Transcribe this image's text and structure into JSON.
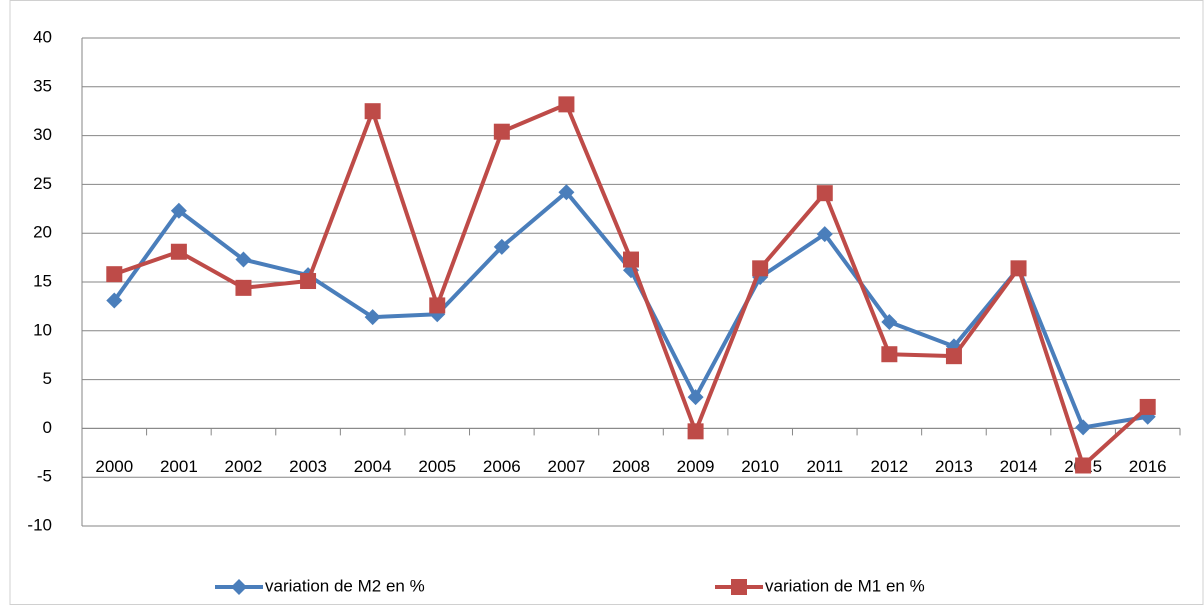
{
  "chart_data": {
    "type": "line",
    "categories": [
      "2000",
      "2001",
      "2002",
      "2003",
      "2004",
      "2005",
      "2006",
      "2007",
      "2008",
      "2009",
      "2010",
      "2011",
      "2012",
      "2013",
      "2014",
      "2015",
      "2016"
    ],
    "series": [
      {
        "name": "variation de M2 en %",
        "color": "#4a7ebb",
        "marker": "diamond",
        "values": [
          13.1,
          22.3,
          17.3,
          15.7,
          11.4,
          11.7,
          18.6,
          24.2,
          16.2,
          3.2,
          15.5,
          19.9,
          10.9,
          8.4,
          16.4,
          0.1,
          1.2
        ]
      },
      {
        "name": "variation de M1 en %",
        "color": "#be4b48",
        "marker": "square",
        "values": [
          15.8,
          18.1,
          14.4,
          15.1,
          32.5,
          12.6,
          30.4,
          33.2,
          17.3,
          -0.3,
          16.4,
          24.1,
          7.6,
          7.4,
          16.4,
          -3.8,
          2.2
        ]
      }
    ],
    "ylim": [
      -10,
      40
    ],
    "yticks": [
      -10,
      -5,
      0,
      5,
      10,
      15,
      20,
      25,
      30,
      35,
      40
    ],
    "grid": true,
    "legend": "bottom"
  }
}
